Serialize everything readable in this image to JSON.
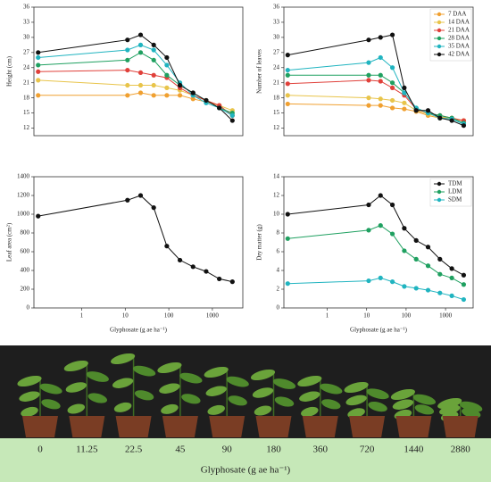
{
  "chart_data": [
    {
      "type": "line",
      "xscale": "log",
      "xlim": [
        0.08,
        5000
      ],
      "ylim": [
        10.5,
        36
      ],
      "yticks": [
        12,
        15,
        18,
        21,
        24,
        27,
        30,
        33,
        36
      ],
      "ylabel": "Height (cm)",
      "x": [
        0.1,
        11.25,
        22.5,
        45,
        90,
        180,
        360,
        720,
        1440,
        2880
      ],
      "series": [
        {
          "name": "7 DAA",
          "color": "#f0a030",
          "values": [
            18.5,
            18.5,
            19.0,
            18.5,
            18.5,
            18.5,
            17.8,
            17.2,
            16.5,
            14.5
          ]
        },
        {
          "name": "14 DAA",
          "color": "#e8c44a",
          "values": [
            21.5,
            20.5,
            20.5,
            20.5,
            20.0,
            19.5,
            18.5,
            17.5,
            16.5,
            15.5
          ]
        },
        {
          "name": "21 DAA",
          "color": "#e0403a",
          "values": [
            23.2,
            23.5,
            23.0,
            22.5,
            22.0,
            20.0,
            18.5,
            17.5,
            16.5,
            14.5
          ]
        },
        {
          "name": "28 DAA",
          "color": "#1fa060",
          "values": [
            24.5,
            25.5,
            27.0,
            25.5,
            22.5,
            20.5,
            19.0,
            17.5,
            16.0,
            15.0
          ]
        },
        {
          "name": "35 DAA",
          "color": "#20b4c0",
          "values": [
            26.0,
            27.5,
            28.5,
            27.5,
            24.5,
            21.0,
            18.5,
            17.0,
            16.0,
            14.5
          ]
        },
        {
          "name": "42 DAA",
          "color": "#111111",
          "values": [
            27.0,
            29.5,
            30.5,
            28.5,
            26.0,
            20.5,
            19.0,
            17.5,
            16.0,
            13.5
          ]
        }
      ]
    },
    {
      "type": "line",
      "xscale": "log",
      "xlim": [
        0.08,
        5000
      ],
      "ylim": [
        10.5,
        36
      ],
      "yticks": [
        12,
        15,
        18,
        21,
        24,
        27,
        30,
        33,
        36
      ],
      "ylabel": "Number of leaves",
      "legend": "upper right",
      "x": [
        0.1,
        11.25,
        22.5,
        45,
        90,
        180,
        360,
        720,
        1440,
        2880
      ],
      "series": [
        {
          "name": "7 DAA",
          "color": "#f0a030",
          "values": [
            16.8,
            16.5,
            16.5,
            16.0,
            15.8,
            15.3,
            14.5,
            14.0,
            13.8,
            13.5
          ]
        },
        {
          "name": "14 DAA",
          "color": "#e8c44a",
          "values": [
            18.5,
            18.0,
            17.8,
            17.5,
            17.0,
            15.5,
            14.8,
            14.2,
            14.0,
            13.5
          ]
        },
        {
          "name": "21 DAA",
          "color": "#e0403a",
          "values": [
            20.8,
            21.5,
            21.3,
            20.0,
            18.5,
            15.8,
            15.0,
            14.5,
            14.0,
            13.5
          ]
        },
        {
          "name": "28 DAA",
          "color": "#1fa060",
          "values": [
            22.5,
            22.5,
            22.5,
            21.0,
            19.0,
            16.0,
            15.0,
            14.5,
            14.0,
            13.0
          ]
        },
        {
          "name": "35 DAA",
          "color": "#20b4c0",
          "values": [
            23.5,
            25.0,
            26.0,
            24.0,
            19.0,
            16.0,
            15.0,
            14.0,
            13.8,
            12.8
          ]
        },
        {
          "name": "42 DAA",
          "color": "#111111",
          "values": [
            26.5,
            29.5,
            30.0,
            30.5,
            20.0,
            15.5,
            15.5,
            14.0,
            13.5,
            12.5
          ]
        }
      ]
    },
    {
      "type": "line",
      "xscale": "log",
      "xlim": [
        0.08,
        5000
      ],
      "ylim": [
        0,
        1400
      ],
      "yticks": [
        0,
        200,
        400,
        600,
        800,
        1000,
        1200,
        1400
      ],
      "xticks": [
        1,
        10,
        100,
        1000
      ],
      "ylabel": "Leaf area (cm²)",
      "xlabel": "Glyphosate (g ae ha⁻¹)",
      "x": [
        0.1,
        11.25,
        22.5,
        45,
        90,
        180,
        360,
        720,
        1440,
        2880
      ],
      "color": "#111111",
      "values": [
        980,
        1150,
        1200,
        1070,
        660,
        510,
        440,
        390,
        310,
        280
      ]
    },
    {
      "type": "line",
      "xscale": "log",
      "xlim": [
        0.08,
        5000
      ],
      "ylim": [
        0,
        14
      ],
      "yticks": [
        0,
        2,
        4,
        6,
        8,
        10,
        12,
        14
      ],
      "xticks": [
        1,
        10,
        100,
        1000
      ],
      "ylabel": "Dry matter (g)",
      "xlabel": "Glyphosate (g ae ha⁻¹)",
      "legend": "upper right",
      "x": [
        0.1,
        11.25,
        22.5,
        45,
        90,
        180,
        360,
        720,
        1440,
        2880
      ],
      "series": [
        {
          "name": "TDM",
          "color": "#111111",
          "values": [
            10.0,
            11.0,
            12.0,
            11.0,
            8.5,
            7.2,
            6.5,
            5.2,
            4.2,
            3.5
          ]
        },
        {
          "name": "LDM",
          "color": "#1fa060",
          "values": [
            7.4,
            8.3,
            8.8,
            7.9,
            6.1,
            5.2,
            4.5,
            3.6,
            3.2,
            2.5
          ]
        },
        {
          "name": "SDM",
          "color": "#20b4c0",
          "values": [
            2.6,
            2.9,
            3.2,
            2.8,
            2.3,
            2.1,
            1.9,
            1.6,
            1.3,
            0.9
          ]
        }
      ]
    }
  ],
  "photo": {
    "labels": [
      "0",
      "11.25",
      "22.5",
      "45",
      "90",
      "180",
      "360",
      "720",
      "1440",
      "2880"
    ],
    "axis_label": "Glyphosate (g ae ha⁻¹)"
  }
}
